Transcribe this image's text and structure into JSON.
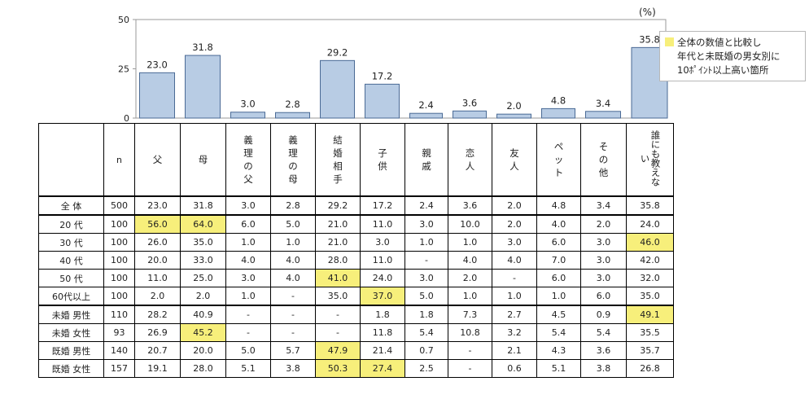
{
  "unit_label": "(%)",
  "legend": {
    "lines": [
      "全体の数値と比較し",
      "年代と未既婚の男女別に",
      "10ﾎﾟｲﾝﾄ以上高い箇所"
    ],
    "highlight_color": "#f7ef7b"
  },
  "chart_data": {
    "type": "bar",
    "categories": [
      "父",
      "母",
      "義理の父",
      "義理の母",
      "結婚相手",
      "子供",
      "親戚",
      "恋人",
      "友人",
      "ペット",
      "その他",
      "誰にも教えない"
    ],
    "values": [
      23.0,
      31.8,
      3.0,
      2.8,
      29.2,
      17.2,
      2.4,
      3.6,
      2.0,
      4.8,
      3.4,
      35.8
    ],
    "ylim": [
      0,
      50
    ],
    "yticks": [
      0,
      25,
      50
    ],
    "bar_color": "#b8cce4",
    "bar_border": "#4a6a95",
    "title": "",
    "xlabel": "",
    "ylabel": ""
  },
  "table": {
    "n_header": "n",
    "columns": [
      "父",
      "母",
      "義理の父",
      "義理の母",
      "結婚相手",
      "子供",
      "親戚",
      "恋人",
      "友人",
      "ペット",
      "その他",
      "誰にも教えない"
    ],
    "rows": [
      {
        "label": "全 体",
        "n": "500",
        "values": [
          "23.0",
          "31.8",
          "3.0",
          "2.8",
          "29.2",
          "17.2",
          "2.4",
          "3.6",
          "2.0",
          "4.8",
          "3.4",
          "35.8"
        ],
        "highlight": []
      },
      {
        "label": "20 代",
        "n": "100",
        "values": [
          "56.0",
          "64.0",
          "6.0",
          "5.0",
          "21.0",
          "11.0",
          "3.0",
          "10.0",
          "2.0",
          "4.0",
          "2.0",
          "24.0"
        ],
        "highlight": [
          0,
          1
        ]
      },
      {
        "label": "30 代",
        "n": "100",
        "values": [
          "26.0",
          "35.0",
          "1.0",
          "1.0",
          "21.0",
          "3.0",
          "1.0",
          "1.0",
          "3.0",
          "6.0",
          "3.0",
          "46.0"
        ],
        "highlight": [
          11
        ]
      },
      {
        "label": "40 代",
        "n": "100",
        "values": [
          "20.0",
          "33.0",
          "4.0",
          "4.0",
          "28.0",
          "11.0",
          "-",
          "4.0",
          "4.0",
          "7.0",
          "3.0",
          "42.0"
        ],
        "highlight": []
      },
      {
        "label": "50 代",
        "n": "100",
        "values": [
          "11.0",
          "25.0",
          "3.0",
          "4.0",
          "41.0",
          "24.0",
          "3.0",
          "2.0",
          "-",
          "6.0",
          "3.0",
          "32.0"
        ],
        "highlight": [
          4
        ]
      },
      {
        "label": "60代以上",
        "n": "100",
        "values": [
          "2.0",
          "2.0",
          "1.0",
          "-",
          "35.0",
          "37.0",
          "5.0",
          "1.0",
          "1.0",
          "1.0",
          "6.0",
          "35.0"
        ],
        "highlight": [
          5
        ]
      },
      {
        "label": "未婚 男性",
        "n": "110",
        "values": [
          "28.2",
          "40.9",
          "-",
          "-",
          "-",
          "1.8",
          "1.8",
          "7.3",
          "2.7",
          "4.5",
          "0.9",
          "49.1"
        ],
        "highlight": [
          11
        ]
      },
      {
        "label": "未婚 女性",
        "n": "93",
        "values": [
          "26.9",
          "45.2",
          "-",
          "-",
          "-",
          "11.8",
          "5.4",
          "10.8",
          "3.2",
          "5.4",
          "5.4",
          "35.5"
        ],
        "highlight": [
          1
        ]
      },
      {
        "label": "既婚 男性",
        "n": "140",
        "values": [
          "20.7",
          "20.0",
          "5.0",
          "5.7",
          "47.9",
          "21.4",
          "0.7",
          "-",
          "2.1",
          "4.3",
          "3.6",
          "35.7"
        ],
        "highlight": [
          4
        ]
      },
      {
        "label": "既婚 女性",
        "n": "157",
        "values": [
          "19.1",
          "28.0",
          "5.1",
          "3.8",
          "50.3",
          "27.4",
          "2.5",
          "-",
          "0.6",
          "5.1",
          "3.8",
          "26.8"
        ],
        "highlight": [
          4,
          5
        ]
      }
    ]
  }
}
